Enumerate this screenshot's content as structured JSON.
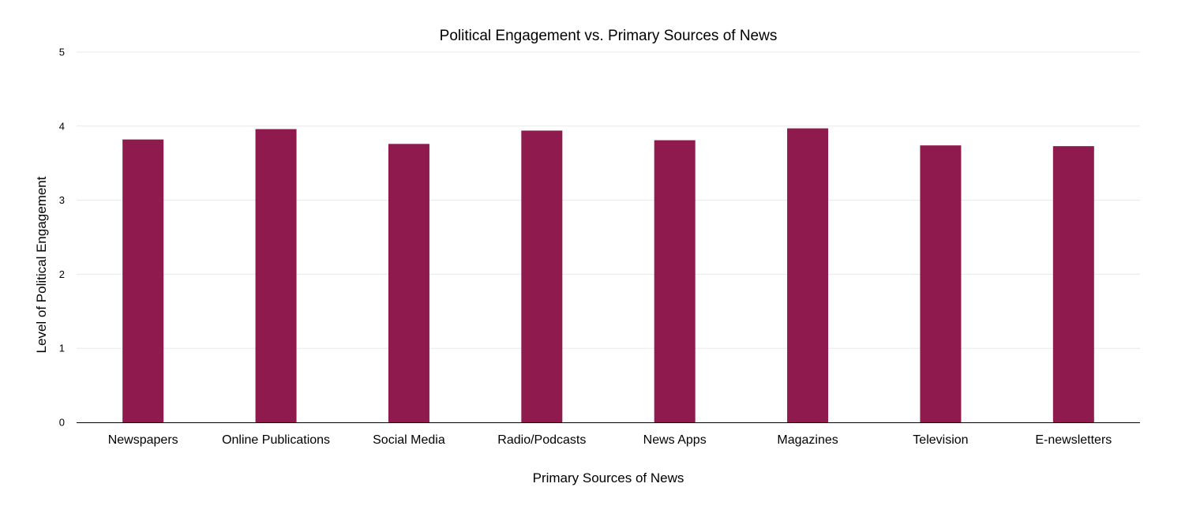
{
  "chart_data": {
    "type": "bar",
    "title": "Political Engagement vs. Primary Sources of News",
    "xlabel": "Primary Sources of News",
    "ylabel": "Level of Political Engagement",
    "categories": [
      "Newspapers",
      "Online Publications",
      "Social Media",
      "Radio/Podcasts",
      "News Apps",
      "Magazines",
      "Television",
      "E-newsletters"
    ],
    "series": [
      {
        "values": [
          3.82,
          3.96,
          3.76,
          3.94,
          3.81,
          3.97,
          3.74,
          3.73
        ],
        "color": "#8f1b4e"
      }
    ],
    "ylim": [
      0,
      5
    ],
    "yticks": [
      "0",
      "1",
      "2",
      "3",
      "4",
      "5"
    ],
    "grid": true,
    "legend": "none"
  }
}
